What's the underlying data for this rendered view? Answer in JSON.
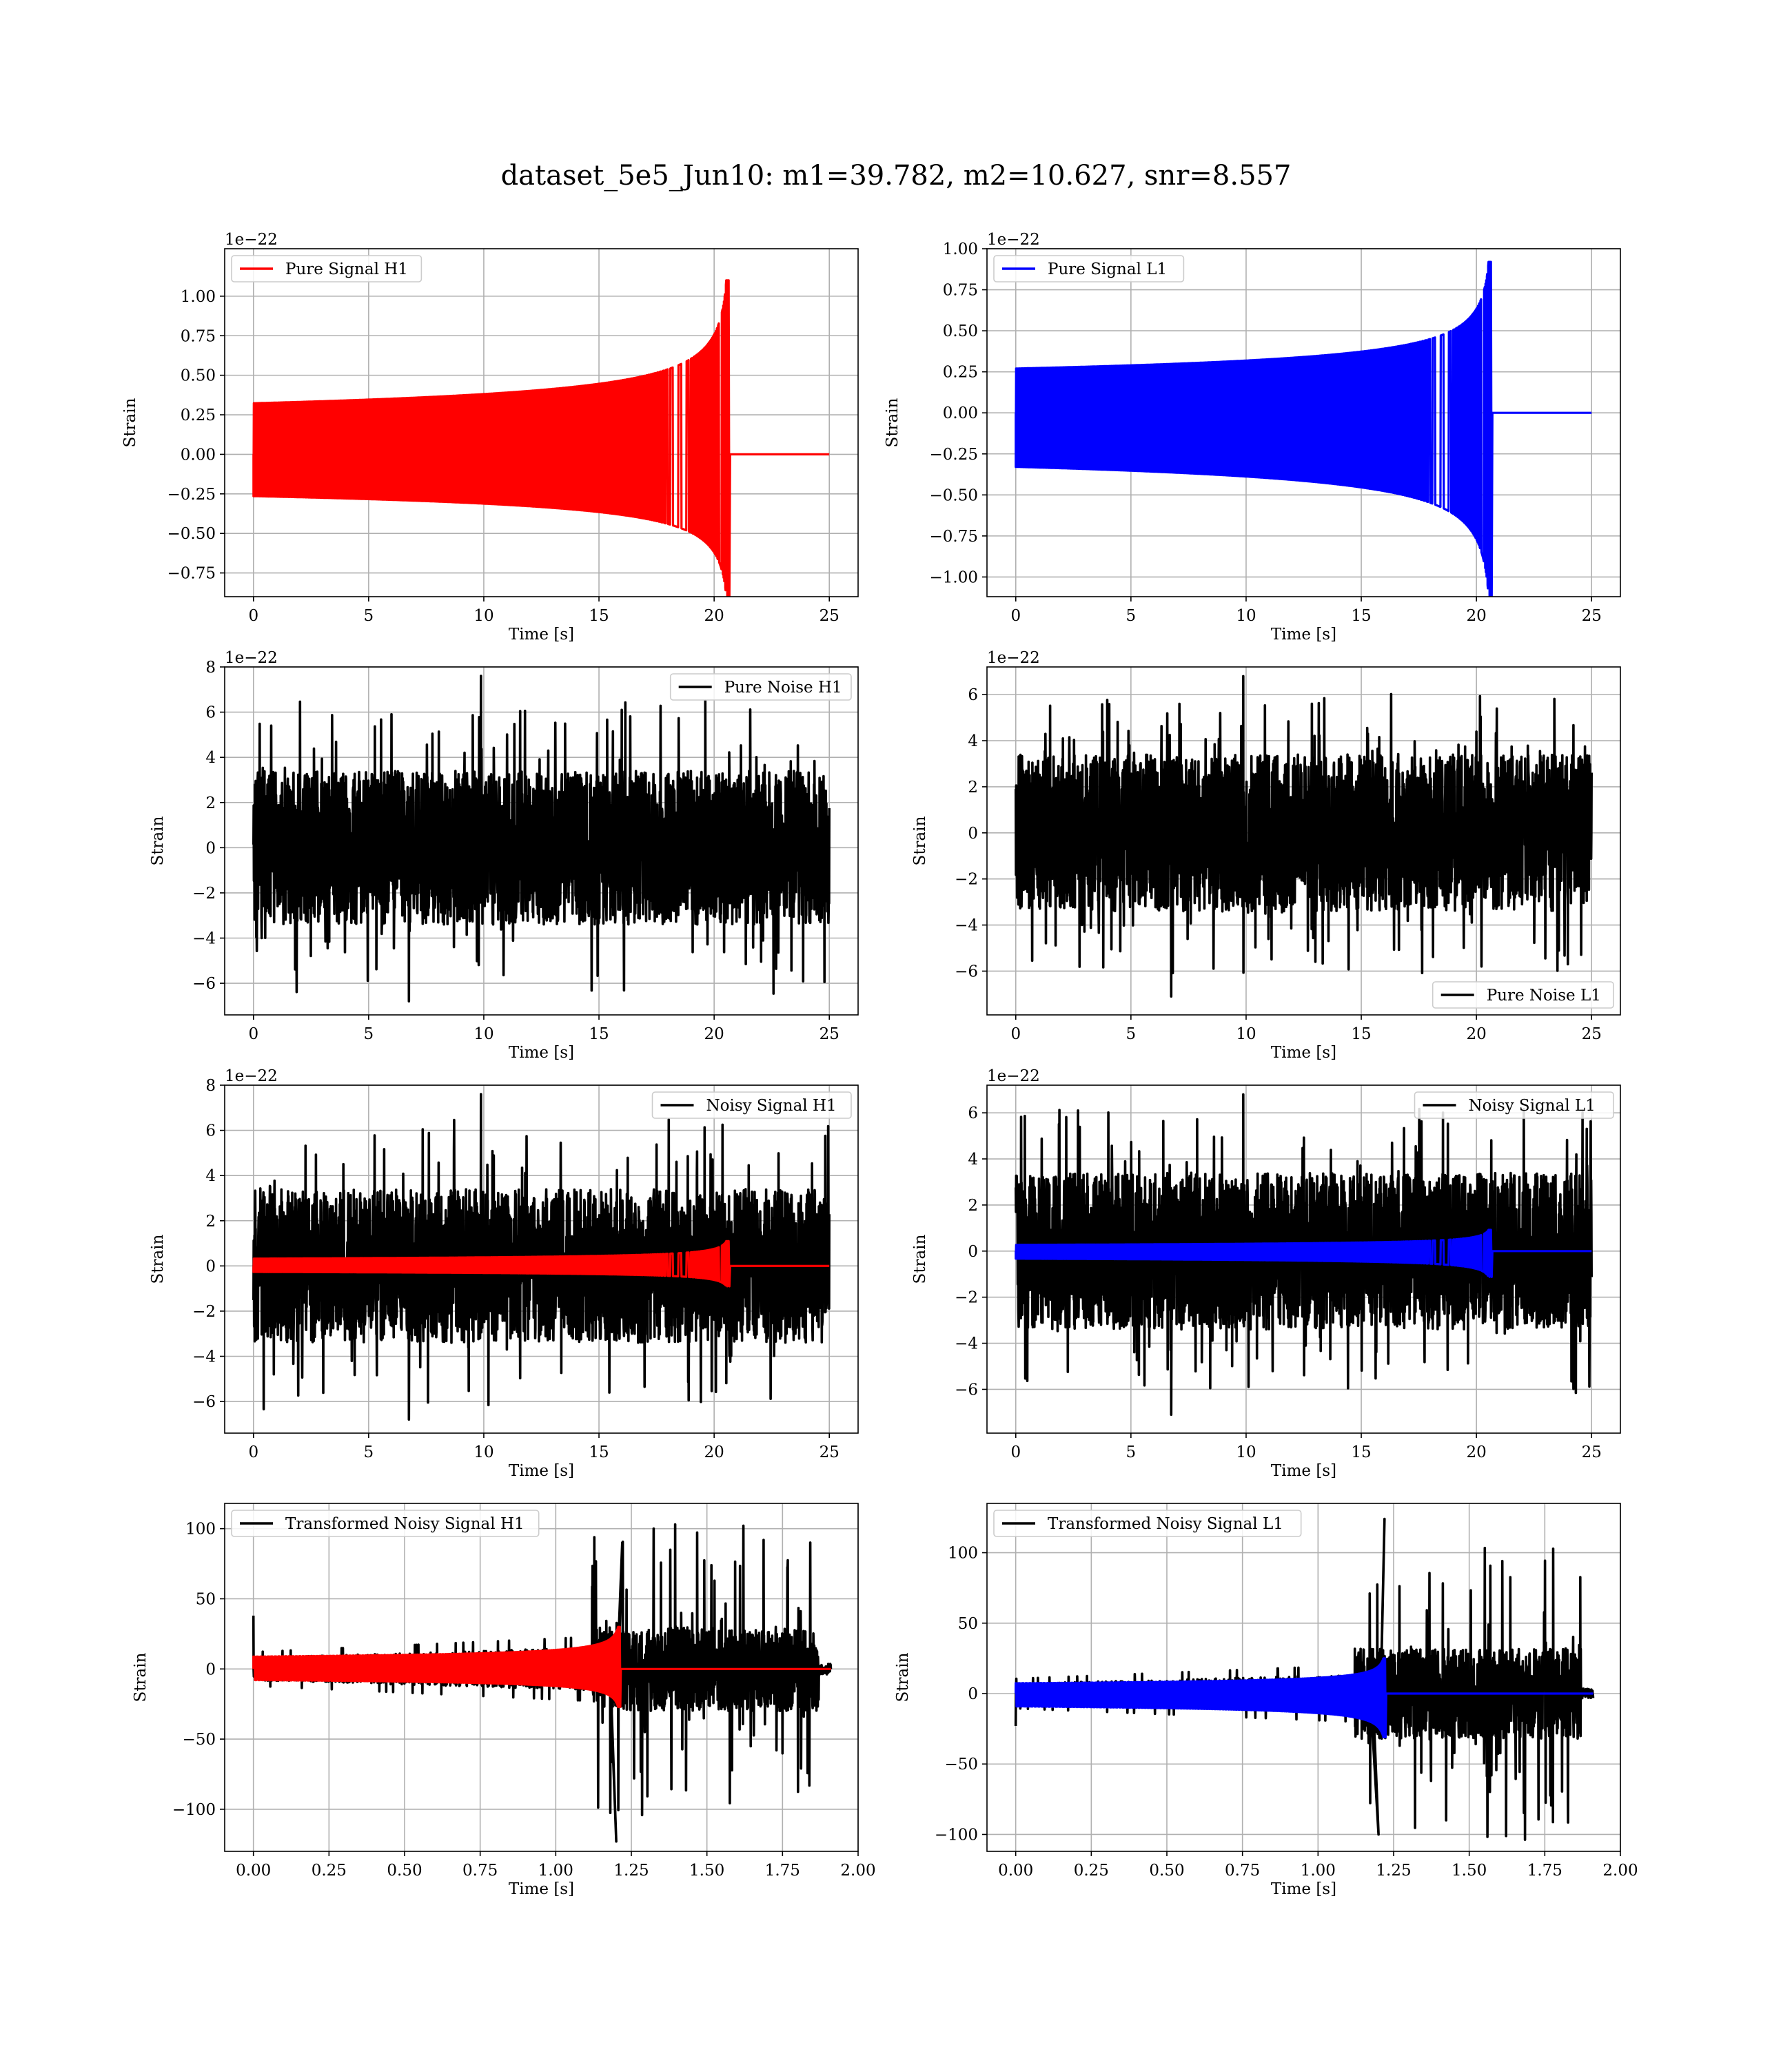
{
  "figure": {
    "title": "dataset_5e5_Jun10: m1=39.782, m2=10.627, snr=8.557"
  },
  "colors": {
    "h1_signal": "#ff0000",
    "l1_signal": "#0000ff",
    "noise": "#000000"
  },
  "chart_data": [
    {
      "id": "pure-signal-h1",
      "type": "line",
      "xlabel": "Time [s]",
      "ylabel": "Strain",
      "offset_text": "1e−22",
      "xlim": [
        -1.25,
        26.25
      ],
      "ylim": [
        -0.9,
        1.3
      ],
      "xticks": [
        0,
        5,
        10,
        15,
        20,
        25
      ],
      "xtick_labels": [
        "0",
        "5",
        "10",
        "15",
        "20",
        "25"
      ],
      "yticks": [
        -0.75,
        -0.5,
        -0.25,
        0,
        0.25,
        0.5,
        0.75,
        1.0
      ],
      "ytick_labels": [
        "−0.75",
        "−0.50",
        "−0.25",
        "0.00",
        "0.25",
        "0.50",
        "0.75",
        "1.00"
      ],
      "legend": {
        "loc": "upper-left"
      },
      "series": [
        {
          "name": "Pure Signal H1",
          "color": "#ff0000",
          "kind": "chirp",
          "t_start": 0,
          "t_end": 25,
          "t_merge": 20.6,
          "peak_pos": 1.1,
          "peak_neg": -0.9
        }
      ]
    },
    {
      "id": "pure-signal-l1",
      "type": "line",
      "xlabel": "Time [s]",
      "ylabel": "Strain",
      "offset_text": "1e−22",
      "xlim": [
        -1.25,
        26.25
      ],
      "ylim": [
        -1.12,
        1.0
      ],
      "xticks": [
        0,
        5,
        10,
        15,
        20,
        25
      ],
      "xtick_labels": [
        "0",
        "5",
        "10",
        "15",
        "20",
        "25"
      ],
      "yticks": [
        -1.0,
        -0.75,
        -0.5,
        -0.25,
        0,
        0.25,
        0.5,
        0.75,
        1.0
      ],
      "ytick_labels": [
        "−1.00",
        "−0.75",
        "−0.50",
        "−0.25",
        "0.00",
        "0.25",
        "0.50",
        "0.75",
        "1.00"
      ],
      "legend": {
        "loc": "upper-left"
      },
      "series": [
        {
          "name": "Pure Signal L1",
          "color": "#0000ff",
          "kind": "chirp",
          "t_start": 0,
          "t_end": 25,
          "t_merge": 20.6,
          "peak_pos": 0.92,
          "peak_neg": -1.12
        }
      ]
    },
    {
      "id": "pure-noise-h1",
      "type": "line",
      "xlabel": "Time [s]",
      "ylabel": "Strain",
      "offset_text": "1e−22",
      "xlim": [
        -1.25,
        26.25
      ],
      "ylim": [
        -7.4,
        8.0
      ],
      "xticks": [
        0,
        5,
        10,
        15,
        20,
        25
      ],
      "xtick_labels": [
        "0",
        "5",
        "10",
        "15",
        "20",
        "25"
      ],
      "yticks": [
        -6,
        -4,
        -2,
        0,
        2,
        4,
        6,
        8
      ],
      "ytick_labels": [
        "−6",
        "−4",
        "−2",
        "0",
        "2",
        "4",
        "6",
        "8"
      ],
      "legend": {
        "loc": "upper-right"
      },
      "series": [
        {
          "name": "Pure Noise H1",
          "color": "#000000",
          "kind": "noise",
          "t_start": 0,
          "t_end": 25,
          "band": 3.4,
          "max": 7.6,
          "min": -6.8
        }
      ]
    },
    {
      "id": "pure-noise-l1",
      "type": "line",
      "xlabel": "Time [s]",
      "ylabel": "Strain",
      "offset_text": "1e−22",
      "xlim": [
        -1.25,
        26.25
      ],
      "ylim": [
        -7.9,
        7.2
      ],
      "xticks": [
        0,
        5,
        10,
        15,
        20,
        25
      ],
      "xtick_labels": [
        "0",
        "5",
        "10",
        "15",
        "20",
        "25"
      ],
      "yticks": [
        -6,
        -4,
        -2,
        0,
        2,
        4,
        6
      ],
      "ytick_labels": [
        "−6",
        "−4",
        "−2",
        "0",
        "2",
        "4",
        "6"
      ],
      "legend": {
        "loc": "lower-right"
      },
      "series": [
        {
          "name": "Pure Noise L1",
          "color": "#000000",
          "kind": "noise",
          "t_start": 0,
          "t_end": 25,
          "band": 3.4,
          "max": 6.8,
          "min": -7.1
        }
      ]
    },
    {
      "id": "noisy-signal-h1",
      "type": "line",
      "xlabel": "Time [s]",
      "ylabel": "Strain",
      "offset_text": "1e−22",
      "xlim": [
        -1.25,
        26.25
      ],
      "ylim": [
        -7.4,
        8.0
      ],
      "xticks": [
        0,
        5,
        10,
        15,
        20,
        25
      ],
      "xtick_labels": [
        "0",
        "5",
        "10",
        "15",
        "20",
        "25"
      ],
      "yticks": [
        -6,
        -4,
        -2,
        0,
        2,
        4,
        6,
        8
      ],
      "ytick_labels": [
        "−6",
        "−4",
        "−2",
        "0",
        "2",
        "4",
        "6",
        "8"
      ],
      "legend": {
        "loc": "upper-right"
      },
      "series": [
        {
          "name": "Noisy Signal H1",
          "color": "#000000",
          "kind": "noise",
          "t_start": 0,
          "t_end": 25,
          "band": 3.4,
          "max": 7.6,
          "min": -6.8
        },
        {
          "name": "",
          "color": "#ff0000",
          "kind": "chirp",
          "t_start": 0,
          "t_end": 25,
          "t_merge": 20.6,
          "peak_pos": 1.1,
          "peak_neg": -0.9
        }
      ]
    },
    {
      "id": "noisy-signal-l1",
      "type": "line",
      "xlabel": "Time [s]",
      "ylabel": "Strain",
      "offset_text": "1e−22",
      "xlim": [
        -1.25,
        26.25
      ],
      "ylim": [
        -7.9,
        7.2
      ],
      "xticks": [
        0,
        5,
        10,
        15,
        20,
        25
      ],
      "xtick_labels": [
        "0",
        "5",
        "10",
        "15",
        "20",
        "25"
      ],
      "yticks": [
        -6,
        -4,
        -2,
        0,
        2,
        4,
        6
      ],
      "ytick_labels": [
        "−6",
        "−4",
        "−2",
        "0",
        "2",
        "4",
        "6"
      ],
      "legend": {
        "loc": "upper-right"
      },
      "series": [
        {
          "name": "Noisy Signal L1",
          "color": "#000000",
          "kind": "noise",
          "t_start": 0,
          "t_end": 25,
          "band": 3.4,
          "max": 6.8,
          "min": -7.1
        },
        {
          "name": "",
          "color": "#0000ff",
          "kind": "chirp",
          "t_start": 0,
          "t_end": 25,
          "t_merge": 20.6,
          "peak_pos": 0.92,
          "peak_neg": -1.12
        }
      ]
    },
    {
      "id": "transformed-noisy-signal-h1",
      "type": "line",
      "xlabel": "Time [s]",
      "ylabel": "Strain",
      "offset_text": "",
      "xlim": [
        -0.095,
        2.0
      ],
      "ylim": [
        -130,
        118
      ],
      "xticks": [
        0,
        0.25,
        0.5,
        0.75,
        1.0,
        1.25,
        1.5,
        1.75,
        2.0
      ],
      "xtick_labels": [
        "0.00",
        "0.25",
        "0.50",
        "0.75",
        "1.00",
        "1.25",
        "1.50",
        "1.75",
        "2.00"
      ],
      "yticks": [
        -100,
        -50,
        0,
        50,
        100
      ],
      "ytick_labels": [
        "−100",
        "−50",
        "0",
        "50",
        "100"
      ],
      "legend": {
        "loc": "upper-left"
      },
      "series": [
        {
          "name": "Transformed Noisy Signal H1",
          "color": "#000000",
          "kind": "whitened",
          "t_start": 0,
          "t_end": 1.91,
          "t_jump": 1.12,
          "t_fall": 1.87,
          "low_band": 8,
          "high_band": 30,
          "max": 90,
          "min": -123,
          "spike_start": 38
        },
        {
          "name": "",
          "color": "#ff0000",
          "kind": "chirp",
          "t_start": 0,
          "t_end": 1.91,
          "t_merge": 1.21,
          "peak_pos": 30,
          "peak_neg": -27
        }
      ]
    },
    {
      "id": "transformed-noisy-signal-l1",
      "type": "line",
      "xlabel": "Time [s]",
      "ylabel": "Strain",
      "offset_text": "",
      "xlim": [
        -0.095,
        2.0
      ],
      "ylim": [
        -112,
        135
      ],
      "xticks": [
        0,
        0.25,
        0.5,
        0.75,
        1.0,
        1.25,
        1.5,
        1.75,
        2.0
      ],
      "xtick_labels": [
        "0.00",
        "0.25",
        "0.50",
        "0.75",
        "1.00",
        "1.25",
        "1.50",
        "1.75",
        "2.00"
      ],
      "yticks": [
        -100,
        -50,
        0,
        50,
        100
      ],
      "ytick_labels": [
        "−100",
        "−50",
        "0",
        "50",
        "100"
      ],
      "legend": {
        "loc": "upper-left"
      },
      "series": [
        {
          "name": "Transformed Noisy Signal L1",
          "color": "#000000",
          "kind": "whitened",
          "t_start": 0,
          "t_end": 1.91,
          "t_jump": 1.12,
          "t_fall": 1.87,
          "low_band": 7,
          "high_band": 32,
          "max": 124,
          "min": -100,
          "spike_start": -23
        },
        {
          "name": "",
          "color": "#0000ff",
          "kind": "chirp",
          "t_start": 0,
          "t_end": 1.91,
          "t_merge": 1.22,
          "peak_pos": 25,
          "peak_neg": -31
        }
      ]
    }
  ]
}
